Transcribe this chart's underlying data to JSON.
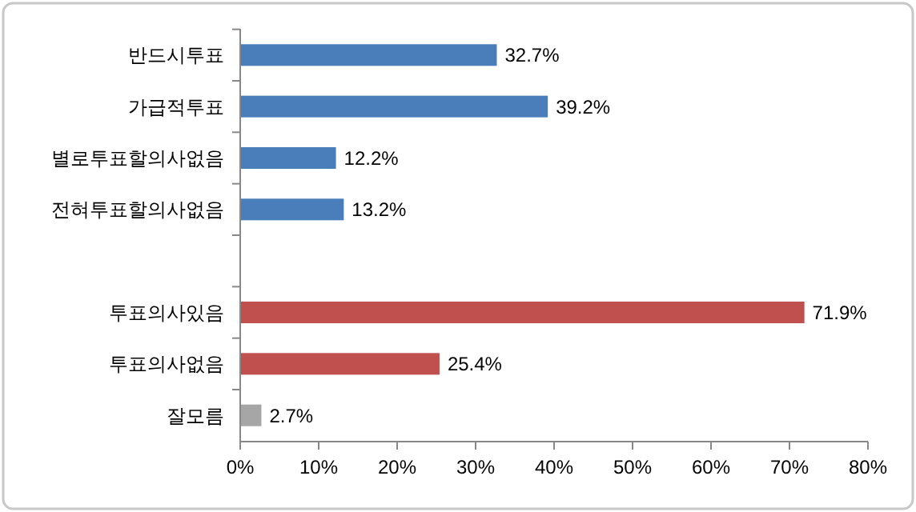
{
  "chart_data": {
    "type": "bar",
    "orientation": "horizontal",
    "categories": [
      "반드시투표",
      "가급적투표",
      "별로투표할의사없음",
      "전혀투표할의사없음",
      null,
      "투표의사있음",
      "투표의사없음",
      "잘모름"
    ],
    "values": [
      32.7,
      39.2,
      12.2,
      13.2,
      null,
      71.9,
      25.4,
      2.7
    ],
    "colors": [
      "#4a7ebb",
      "#4a7ebb",
      "#4a7ebb",
      "#4a7ebb",
      null,
      "#c0504d",
      "#c0504d",
      "#a6a6a6"
    ],
    "value_labels": [
      "32.7%",
      "39.2%",
      "12.2%",
      "13.2%",
      null,
      "71.9%",
      "25.4%",
      "2.7%"
    ],
    "xlim": [
      0,
      80
    ],
    "xticks": [
      {
        "value": 0,
        "label": "0%"
      },
      {
        "value": 10,
        "label": "10%"
      },
      {
        "value": 20,
        "label": "20%"
      },
      {
        "value": 30,
        "label": "30%"
      },
      {
        "value": 40,
        "label": "40%"
      },
      {
        "value": 50,
        "label": "50%"
      },
      {
        "value": 60,
        "label": "60%"
      },
      {
        "value": 70,
        "label": "70%"
      },
      {
        "value": 80,
        "label": "80%"
      }
    ],
    "grid": false
  }
}
